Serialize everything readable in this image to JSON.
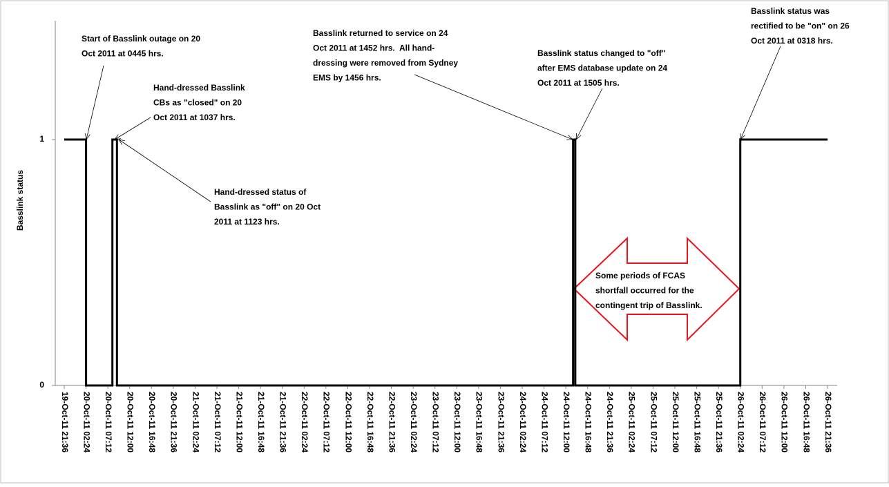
{
  "chart_data": {
    "type": "step",
    "ylabel": "Basslink status",
    "x": [
      "19-Oct-11 21:36",
      "20-Oct-11 02:24",
      "20-Oct-11 08:12",
      "20-Oct-11 09:12",
      "24-Oct-11 13:36",
      "24-Oct-11 14:05",
      "26-Oct-11 02:24",
      "26-Oct-11 21:36"
    ],
    "values": [
      1,
      0,
      1,
      0,
      1,
      0,
      1,
      1
    ],
    "color": "#000000",
    "xlim": [
      "19-Oct-11 21:36",
      "26-Oct-11 21:36"
    ],
    "xticks": [
      "19-Oct-11 21:36",
      "20-Oct-11 02:24",
      "20-Oct-11 07:12",
      "20-Oct-11 12:00",
      "20-Oct-11 16:48",
      "20-Oct-11 21:36",
      "21-Oct-11 02:24",
      "21-Oct-11 07:12",
      "21-Oct-11 12:00",
      "21-Oct-11 16:48",
      "21-Oct-11 21:36",
      "22-Oct-11 02:24",
      "22-Oct-11 07:12",
      "22-Oct-11 12:00",
      "22-Oct-11 16:48",
      "22-Oct-11 21:36",
      "23-Oct-11 02:24",
      "23-Oct-11 07:12",
      "23-Oct-11 12:00",
      "23-Oct-11 16:48",
      "23-Oct-11 21:36",
      "24-Oct-11 02:24",
      "24-Oct-11 07:12",
      "24-Oct-11 12:00",
      "24-Oct-11 16:48",
      "24-Oct-11 21:36",
      "25-Oct-11 02:24",
      "25-Oct-11 07:12",
      "25-Oct-11 12:00",
      "25-Oct-11 16:48",
      "25-Oct-11 21:36",
      "26-Oct-11 02:24",
      "26-Oct-11 07:12",
      "26-Oct-11 12:00",
      "26-Oct-11 16:48",
      "26-Oct-11 21:36"
    ],
    "ylim": [
      0,
      1.5
    ],
    "yticks": [
      0,
      1
    ],
    "annotations": [
      {
        "lines": [
          "Start of Basslink outage on 20",
          "Oct 2011 at 0445 hrs."
        ]
      },
      {
        "lines": [
          "Hand-dressed Basslink",
          "CBs as \"closed\" on 20",
          "Oct 2011 at 1037 hrs."
        ]
      },
      {
        "lines": [
          "Hand-dressed status of",
          "Basslink as \"off\" on 20 Oct",
          "2011 at 1123 hrs."
        ]
      },
      {
        "lines": [
          "Basslink returned to service on 24",
          "Oct 2011 at 1452 hrs.  All hand-",
          "dressing were removed from Sydney",
          "EMS by 1456 hrs."
        ]
      },
      {
        "lines": [
          "Basslink status changed to \"off\"",
          "after EMS database update on 24",
          "Oct 2011 at 1505 hrs."
        ]
      },
      {
        "lines": [
          "Basslink status was",
          "rectified to be \"on\" on 26",
          "Oct 2011 at 0318 hrs."
        ]
      },
      {
        "lines": [
          "Some periods of FCAS",
          "shortfall occurred for the",
          "contingent trip of Basslink."
        ]
      }
    ]
  }
}
